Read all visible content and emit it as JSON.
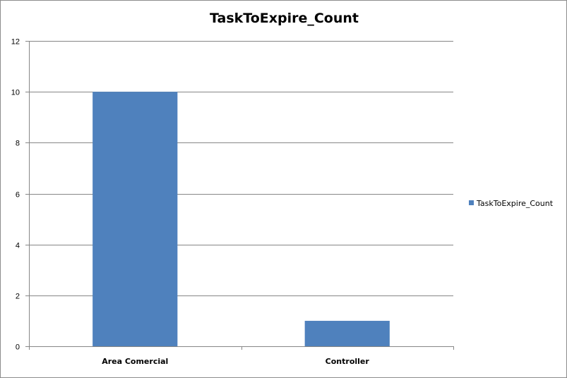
{
  "chart_data": {
    "type": "bar",
    "title": "TaskToExpire_Count",
    "categories": [
      "Area Comercial",
      "Controller"
    ],
    "series": [
      {
        "name": "TaskToExpire_Count",
        "values": [
          10,
          1
        ],
        "color": "#4f81bd"
      }
    ],
    "ylim": [
      0,
      12
    ],
    "yticks": [
      0,
      2,
      4,
      6,
      8,
      10,
      12
    ],
    "grid": true,
    "legend_position": "right"
  }
}
